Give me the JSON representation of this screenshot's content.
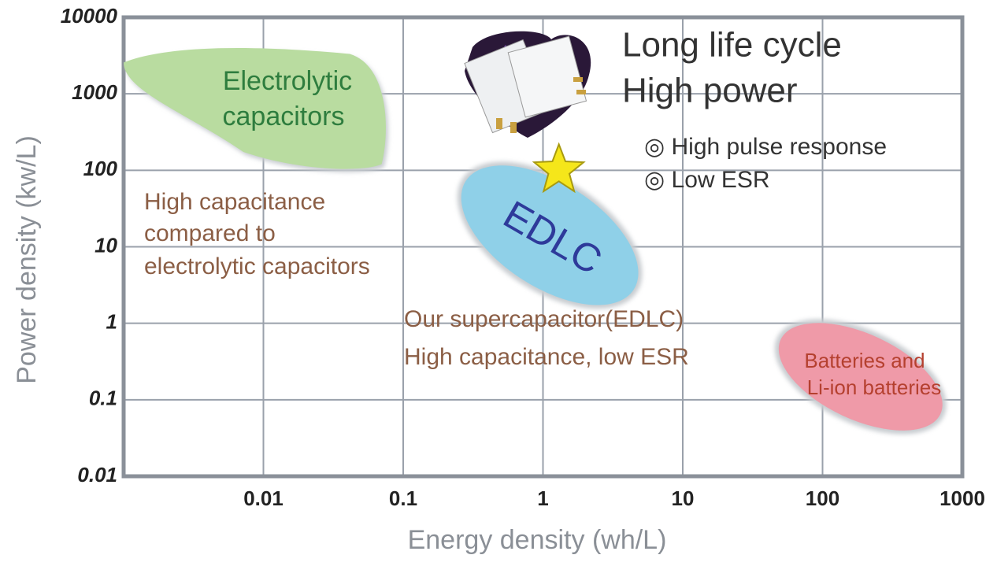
{
  "chart_data": {
    "type": "ragone",
    "x_label": "Energy density (wh/L)",
    "y_label": "Power density (kw/L)",
    "log_x": true,
    "log_y": true,
    "grid": true,
    "xlim": [
      0.001,
      1000
    ],
    "xticks": [
      0.01,
      0.1,
      1,
      10,
      100,
      1000
    ],
    "ylim": [
      0.01,
      10000
    ],
    "yticks": [
      0.01,
      0.1,
      1,
      10,
      100,
      1000,
      10000
    ],
    "regions": [
      {
        "label": [
          "Electrolytic",
          "capacitors"
        ],
        "color": "#b9dca0",
        "text_color": "#2e7d3e",
        "x": [
          0.001,
          0.08
        ],
        "y": [
          100,
          4000
        ]
      },
      {
        "label": [
          "EDLC"
        ],
        "color": "#8fd0e8",
        "text_color": "#2e3a9a",
        "x": [
          0.25,
          5
        ],
        "y": [
          2,
          100
        ]
      },
      {
        "label": [
          "Batteries and",
          "Li-ion batteries"
        ],
        "color": "#ef9aa8",
        "text_color": "#b5402f",
        "x": [
          50,
          700
        ],
        "y": [
          0.04,
          1
        ]
      }
    ],
    "star": {
      "x": 1.3,
      "y": 100,
      "color": "#f5e61a"
    },
    "annotations": [
      "Long life cycle",
      "High power",
      "◎ High pulse response",
      "◎ Low ESR",
      "High capacitance",
      "compared to",
      "electrolytic capacitors",
      "Our supercapacitor(EDLC)",
      "High capacitance, low ESR"
    ]
  }
}
